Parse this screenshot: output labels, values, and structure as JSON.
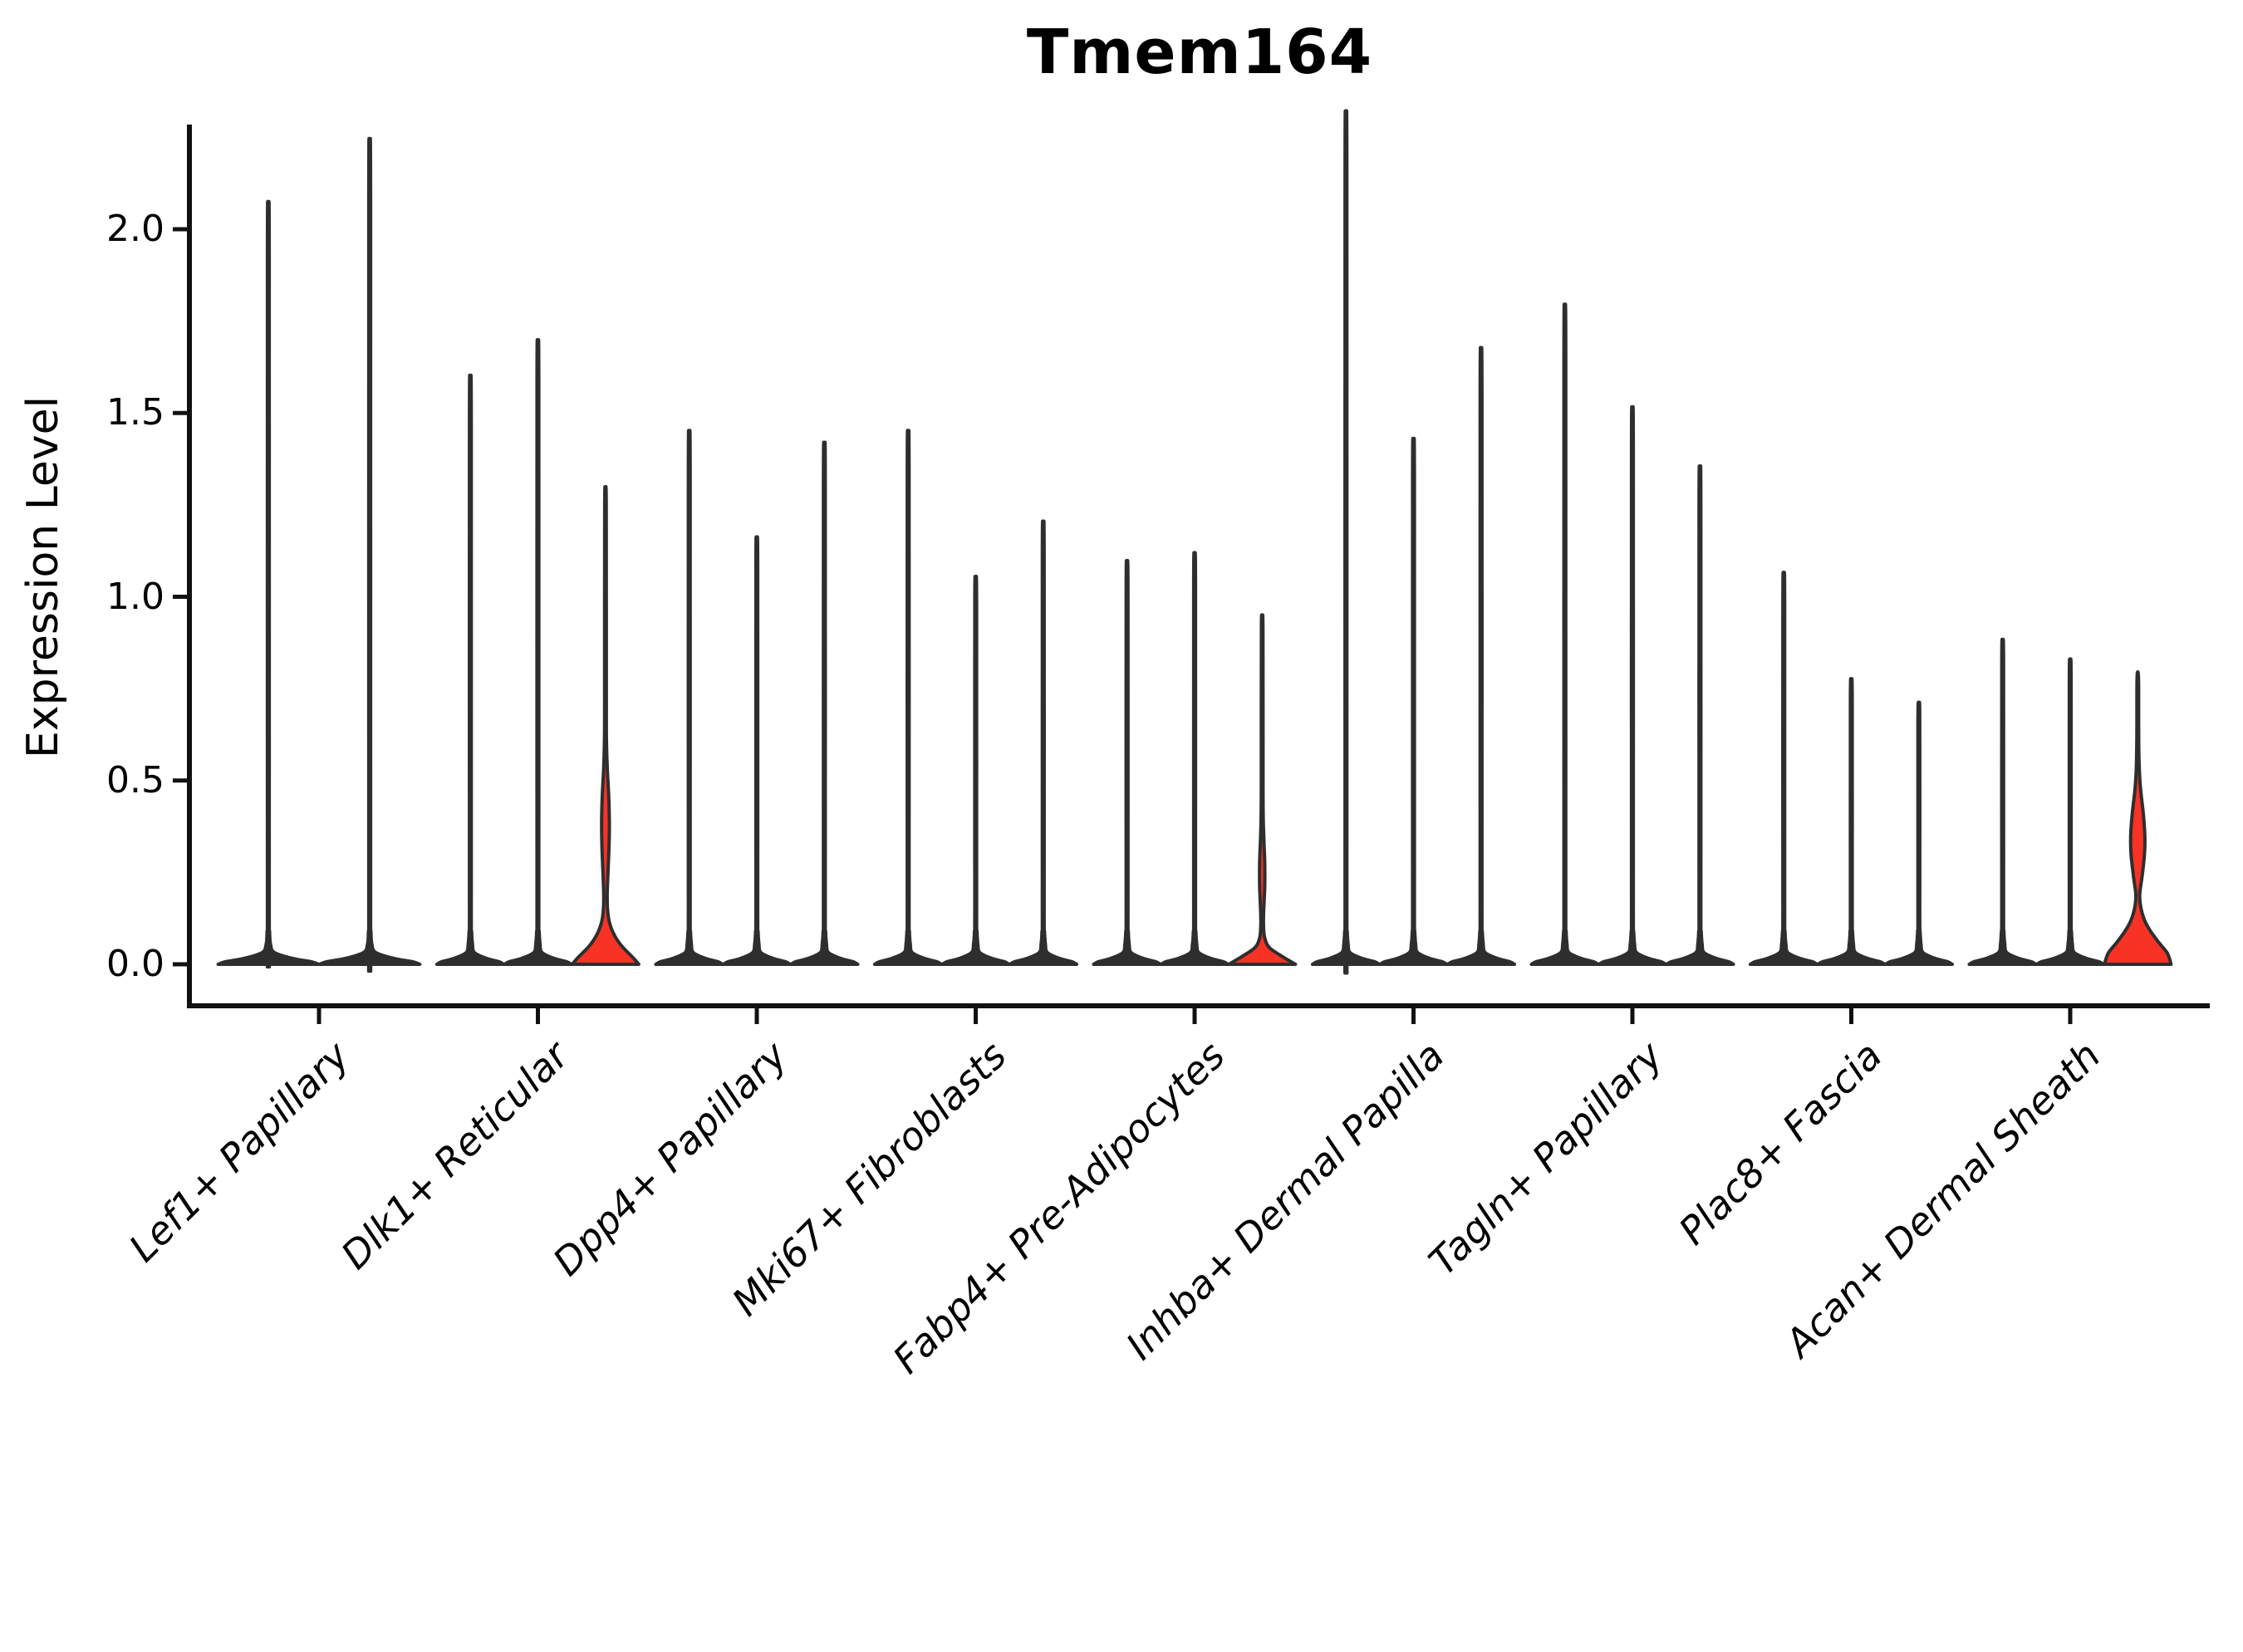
{
  "chart": {
    "title": "Tmem164",
    "y_label": "Expression Level"
  },
  "chart_data": {
    "type": "violin",
    "title": "Tmem164",
    "ylabel": "Expression Level",
    "xlabel": "",
    "ylim": [
      0,
      2.29
    ],
    "yticks": [
      0.0,
      0.5,
      1.0,
      1.5,
      2.0
    ],
    "grid": false,
    "legend": "none",
    "fill_color": "#f93226",
    "outline_color": "#2e2e2e",
    "axis_color": "#111111",
    "categories": [
      "Lef1+ Papillary",
      "Dlk1+ Reticular",
      "Dpp4+ Papillary",
      "Mki67+ Fibroblasts",
      "Fabp4+ Pre-Adipocytes",
      "Inhba+ Dermal Papilla",
      "Tagln+ Papillary",
      "Plac8+ Fascia",
      "Acan+ Dermal Sheath"
    ],
    "series": [
      {
        "category": "Lef1+ Papillary",
        "violins": [
          {
            "max": 1.96
          },
          {
            "max": 2.12
          }
        ]
      },
      {
        "category": "Dlk1+ Reticular",
        "violins": [
          {
            "max": 1.52
          },
          {
            "max": 1.61
          },
          {
            "max": 1.28,
            "fill_visible": true,
            "profile": [
              [
                0,
                0.99
              ],
              [
                0.02,
                0.8
              ],
              [
                0.05,
                0.48
              ],
              [
                0.08,
                0.26
              ],
              [
                0.115,
                0.115
              ],
              [
                0.15,
                0.062
              ],
              [
                0.19,
                0.052
              ],
              [
                0.25,
                0.075
              ],
              [
                0.32,
                0.105
              ],
              [
                0.39,
                0.115
              ],
              [
                0.46,
                0.095
              ],
              [
                0.53,
                0.055
              ],
              [
                0.6,
                0.032
              ],
              [
                0.7,
                0.026
              ],
              [
                1.24,
                0.024
              ]
            ]
          }
        ]
      },
      {
        "category": "Dpp4+ Papillary",
        "violins": [
          {
            "max": 1.38
          },
          {
            "max": 1.11
          },
          {
            "max": 1.35
          }
        ]
      },
      {
        "category": "Mki67+ Fibroblasts",
        "violins": [
          {
            "max": 1.38
          },
          {
            "max": 1.01
          },
          {
            "max": 1.15
          }
        ]
      },
      {
        "category": "Fabp4+ Pre-Adipocytes",
        "violins": [
          {
            "max": 1.05
          },
          {
            "max": 1.07
          },
          {
            "max": 0.93,
            "fill_visible": true,
            "profile": [
              [
                0,
                0.99
              ],
              [
                0.02,
                0.62
              ],
              [
                0.045,
                0.22
              ],
              [
                0.07,
                0.08
              ],
              [
                0.1,
                0.042
              ],
              [
                0.135,
                0.042
              ],
              [
                0.17,
                0.058
              ],
              [
                0.22,
                0.078
              ],
              [
                0.28,
                0.075
              ],
              [
                0.34,
                0.05
              ],
              [
                0.4,
                0.032
              ],
              [
                0.5,
                0.026
              ],
              [
                0.91,
                0.024
              ]
            ]
          }
        ]
      },
      {
        "category": "Inhba+ Dermal Papilla",
        "violins": [
          {
            "max": 2.19
          },
          {
            "max": 1.36
          },
          {
            "max": 1.59
          }
        ]
      },
      {
        "category": "Tagln+ Papillary",
        "violins": [
          {
            "max": 1.7
          },
          {
            "max": 1.44
          },
          {
            "max": 1.29
          }
        ]
      },
      {
        "category": "Plac8+ Fascia",
        "violins": [
          {
            "max": 1.02
          },
          {
            "max": 0.75
          },
          {
            "max": 0.69
          }
        ]
      },
      {
        "category": "Acan+ Dermal Sheath",
        "violins": [
          {
            "max": 0.85
          },
          {
            "max": 0.8
          },
          {
            "max": 0.79,
            "fill_visible": true,
            "profile": [
              [
                0,
                0.99
              ],
              [
                0.03,
                0.88
              ],
              [
                0.06,
                0.62
              ],
              [
                0.09,
                0.38
              ],
              [
                0.12,
                0.2
              ],
              [
                0.155,
                0.09
              ],
              [
                0.19,
                0.058
              ],
              [
                0.24,
                0.13
              ],
              [
                0.3,
                0.2
              ],
              [
                0.35,
                0.21
              ],
              [
                0.41,
                0.165
              ],
              [
                0.47,
                0.09
              ],
              [
                0.52,
                0.05
              ],
              [
                0.58,
                0.032
              ],
              [
                0.65,
                0.026
              ],
              [
                0.77,
                0.024
              ]
            ]
          }
        ]
      }
    ]
  }
}
